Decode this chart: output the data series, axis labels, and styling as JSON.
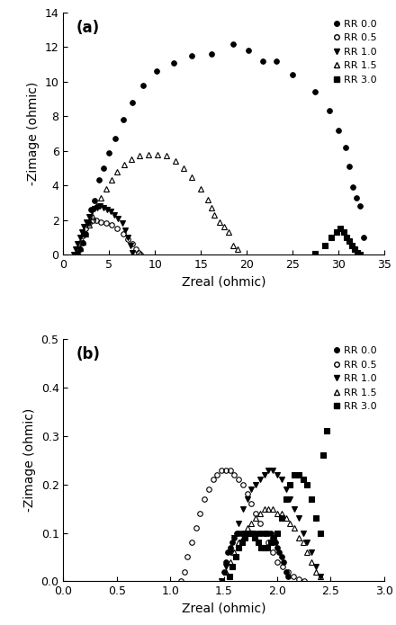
{
  "title_a": "(a)",
  "title_b": "(b)",
  "xlabel": "Zreal (ohmic)",
  "ylabel": "-Zimage (ohmic)",
  "xlim_a": [
    0,
    35
  ],
  "ylim_a": [
    0,
    14
  ],
  "xlim_b": [
    0.0,
    3.0
  ],
  "ylim_b": [
    0.0,
    0.5
  ],
  "xticks_a": [
    0,
    5,
    10,
    15,
    20,
    25,
    30,
    35
  ],
  "yticks_a": [
    0,
    2,
    4,
    6,
    8,
    10,
    12,
    14
  ],
  "xticks_b": [
    0.0,
    0.5,
    1.0,
    1.5,
    2.0,
    2.5,
    3.0
  ],
  "yticks_b": [
    0.0,
    0.1,
    0.2,
    0.3,
    0.4,
    0.5
  ],
  "legend_labels": [
    "RR 0.0",
    "RR 0.5",
    "RR 1.0",
    "RR 1.5",
    "RR 3.0"
  ],
  "markersize": 4,
  "anode_rr00_x": [
    1.5,
    1.8,
    2.1,
    2.4,
    2.7,
    3.0,
    3.4,
    3.9,
    4.4,
    5.0,
    5.7,
    6.5,
    7.5,
    8.7,
    10.2,
    12.0,
    14.0,
    16.2,
    18.5,
    20.2,
    21.8,
    23.2,
    25.0,
    27.5,
    29.0,
    30.0,
    30.8,
    31.2,
    31.6,
    32.0,
    32.4,
    32.8
  ],
  "anode_rr00_y": [
    0.05,
    0.3,
    0.7,
    1.2,
    1.9,
    2.6,
    3.1,
    4.3,
    5.0,
    5.9,
    6.7,
    7.8,
    8.8,
    9.8,
    10.6,
    11.1,
    11.5,
    11.6,
    12.2,
    11.8,
    11.2,
    11.2,
    10.4,
    9.4,
    8.3,
    7.2,
    6.2,
    5.1,
    3.9,
    3.3,
    2.8,
    1.0
  ],
  "anode_rr05_x": [
    1.2,
    1.5,
    1.8,
    2.1,
    2.4,
    2.8,
    3.2,
    3.6,
    4.1,
    4.7,
    5.3,
    5.9,
    6.5,
    7.0,
    7.5,
    7.9,
    8.2,
    8.45
  ],
  "anode_rr05_y": [
    0.02,
    0.3,
    0.7,
    1.1,
    1.5,
    1.8,
    2.0,
    2.0,
    1.9,
    1.8,
    1.7,
    1.5,
    1.2,
    0.9,
    0.6,
    0.3,
    0.1,
    0.02
  ],
  "anode_rr10_x": [
    1.1,
    1.3,
    1.5,
    1.8,
    2.0,
    2.2,
    2.5,
    2.8,
    3.1,
    3.4,
    3.7,
    4.0,
    4.4,
    4.8,
    5.2,
    5.6,
    6.0,
    6.4,
    6.7,
    7.0,
    7.3,
    7.5
  ],
  "anode_rr10_y": [
    0.02,
    0.3,
    0.6,
    1.0,
    1.3,
    1.6,
    1.9,
    2.2,
    2.5,
    2.65,
    2.7,
    2.8,
    2.7,
    2.6,
    2.5,
    2.3,
    2.1,
    1.8,
    1.4,
    1.0,
    0.5,
    0.1
  ],
  "anode_rr15_x": [
    1.5,
    1.8,
    2.1,
    2.4,
    2.8,
    3.2,
    3.6,
    4.1,
    4.7,
    5.3,
    5.9,
    6.6,
    7.4,
    8.3,
    9.3,
    10.3,
    11.3,
    12.2,
    13.1,
    14.0,
    15.0,
    15.8,
    16.2,
    16.5,
    17.0,
    17.5,
    18.0,
    18.5,
    19.0
  ],
  "anode_rr15_y": [
    0.02,
    0.35,
    0.75,
    1.2,
    1.7,
    2.2,
    2.8,
    3.3,
    3.8,
    4.3,
    4.8,
    5.2,
    5.5,
    5.7,
    5.75,
    5.8,
    5.7,
    5.4,
    5.0,
    4.5,
    3.8,
    3.15,
    2.7,
    2.3,
    1.9,
    1.6,
    1.3,
    0.5,
    0.3
  ],
  "anode_rr30_x": [
    27.5,
    28.5,
    29.2,
    29.8,
    30.2,
    30.6,
    30.9,
    31.2,
    31.5,
    31.8,
    32.1,
    32.4
  ],
  "anode_rr30_y": [
    0.05,
    0.5,
    1.0,
    1.3,
    1.5,
    1.3,
    1.0,
    0.8,
    0.5,
    0.3,
    0.1,
    0.02
  ],
  "cathode_rr00_x": [
    1.5,
    1.52,
    1.54,
    1.56,
    1.58,
    1.6,
    1.62,
    1.64,
    1.66,
    1.68,
    1.7,
    1.72,
    1.74,
    1.76,
    1.78,
    1.8,
    1.82,
    1.84,
    1.86,
    1.88,
    1.9,
    1.92,
    1.94,
    1.96,
    1.98,
    2.0,
    2.02,
    2.04,
    2.06,
    2.08,
    2.1
  ],
  "cathode_rr00_y": [
    0.02,
    0.04,
    0.06,
    0.07,
    0.08,
    0.09,
    0.1,
    0.1,
    0.1,
    0.1,
    0.1,
    0.1,
    0.1,
    0.1,
    0.1,
    0.1,
    0.1,
    0.1,
    0.1,
    0.1,
    0.1,
    0.1,
    0.1,
    0.09,
    0.08,
    0.07,
    0.06,
    0.05,
    0.04,
    0.02,
    0.01
  ],
  "cathode_rr05_x": [
    1.1,
    1.13,
    1.16,
    1.2,
    1.24,
    1.28,
    1.32,
    1.36,
    1.4,
    1.44,
    1.48,
    1.52,
    1.56,
    1.6,
    1.64,
    1.68,
    1.72,
    1.76,
    1.8,
    1.84,
    1.88,
    1.92,
    1.96,
    2.0,
    2.05,
    2.1,
    2.15,
    2.2,
    2.25
  ],
  "cathode_rr05_y": [
    0.0,
    0.02,
    0.05,
    0.08,
    0.11,
    0.14,
    0.17,
    0.19,
    0.21,
    0.22,
    0.23,
    0.23,
    0.23,
    0.22,
    0.21,
    0.2,
    0.18,
    0.16,
    0.14,
    0.12,
    0.1,
    0.08,
    0.06,
    0.04,
    0.03,
    0.02,
    0.01,
    0.005,
    0.0
  ],
  "cathode_rr10_x": [
    1.48,
    1.52,
    1.56,
    1.6,
    1.64,
    1.68,
    1.72,
    1.76,
    1.8,
    1.84,
    1.88,
    1.92,
    1.96,
    2.0,
    2.04,
    2.08,
    2.12,
    2.16,
    2.2,
    2.24,
    2.28,
    2.32,
    2.36,
    2.4
  ],
  "cathode_rr10_y": [
    0.0,
    0.03,
    0.06,
    0.09,
    0.12,
    0.15,
    0.17,
    0.19,
    0.2,
    0.21,
    0.22,
    0.23,
    0.23,
    0.22,
    0.21,
    0.19,
    0.17,
    0.15,
    0.13,
    0.1,
    0.08,
    0.06,
    0.03,
    0.01
  ],
  "cathode_rr15_x": [
    1.48,
    1.52,
    1.56,
    1.6,
    1.64,
    1.68,
    1.72,
    1.76,
    1.8,
    1.84,
    1.88,
    1.92,
    1.96,
    2.0,
    2.04,
    2.08,
    2.12,
    2.16,
    2.2,
    2.24,
    2.28,
    2.32,
    2.36,
    2.4
  ],
  "cathode_rr15_y": [
    0.0,
    0.02,
    0.04,
    0.06,
    0.08,
    0.09,
    0.11,
    0.12,
    0.13,
    0.14,
    0.15,
    0.15,
    0.15,
    0.14,
    0.14,
    0.13,
    0.12,
    0.11,
    0.09,
    0.08,
    0.06,
    0.04,
    0.02,
    0.01
  ],
  "cathode_rr30_x": [
    1.55,
    1.58,
    1.61,
    1.64,
    1.67,
    1.7,
    1.73,
    1.76,
    1.79,
    1.82,
    1.85,
    1.88,
    1.91,
    1.94,
    1.97,
    2.0,
    2.04,
    2.08,
    2.12,
    2.16,
    2.2,
    2.24,
    2.28,
    2.32,
    2.36,
    2.4,
    2.43,
    2.46
  ],
  "cathode_rr30_y": [
    0.01,
    0.03,
    0.05,
    0.07,
    0.08,
    0.09,
    0.1,
    0.1,
    0.09,
    0.08,
    0.07,
    0.07,
    0.07,
    0.08,
    0.09,
    0.1,
    0.13,
    0.17,
    0.2,
    0.22,
    0.22,
    0.21,
    0.2,
    0.17,
    0.13,
    0.1,
    0.26,
    0.31
  ]
}
